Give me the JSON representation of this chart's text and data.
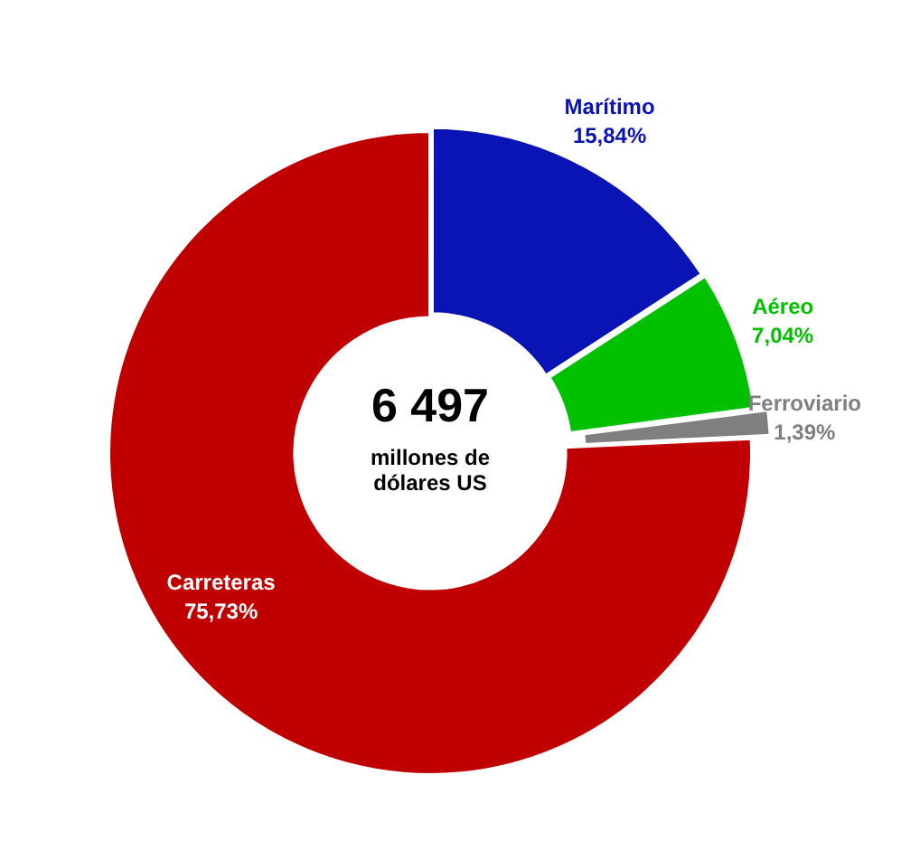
{
  "chart_data": {
    "type": "donut",
    "categories": [
      "Marítimo",
      "Aéreo",
      "Ferroviario",
      "Carreteras"
    ],
    "values": [
      15.84,
      7.04,
      1.39,
      75.73
    ],
    "colors": [
      "#0a14b4",
      "#00c000",
      "#7f7f7f",
      "#c00000"
    ],
    "value_labels": [
      "15,84%",
      "7,04%",
      "1,39%",
      "75,73%"
    ],
    "legend": false,
    "annotations": [
      "6 497",
      "millones de dólares US"
    ]
  }
}
